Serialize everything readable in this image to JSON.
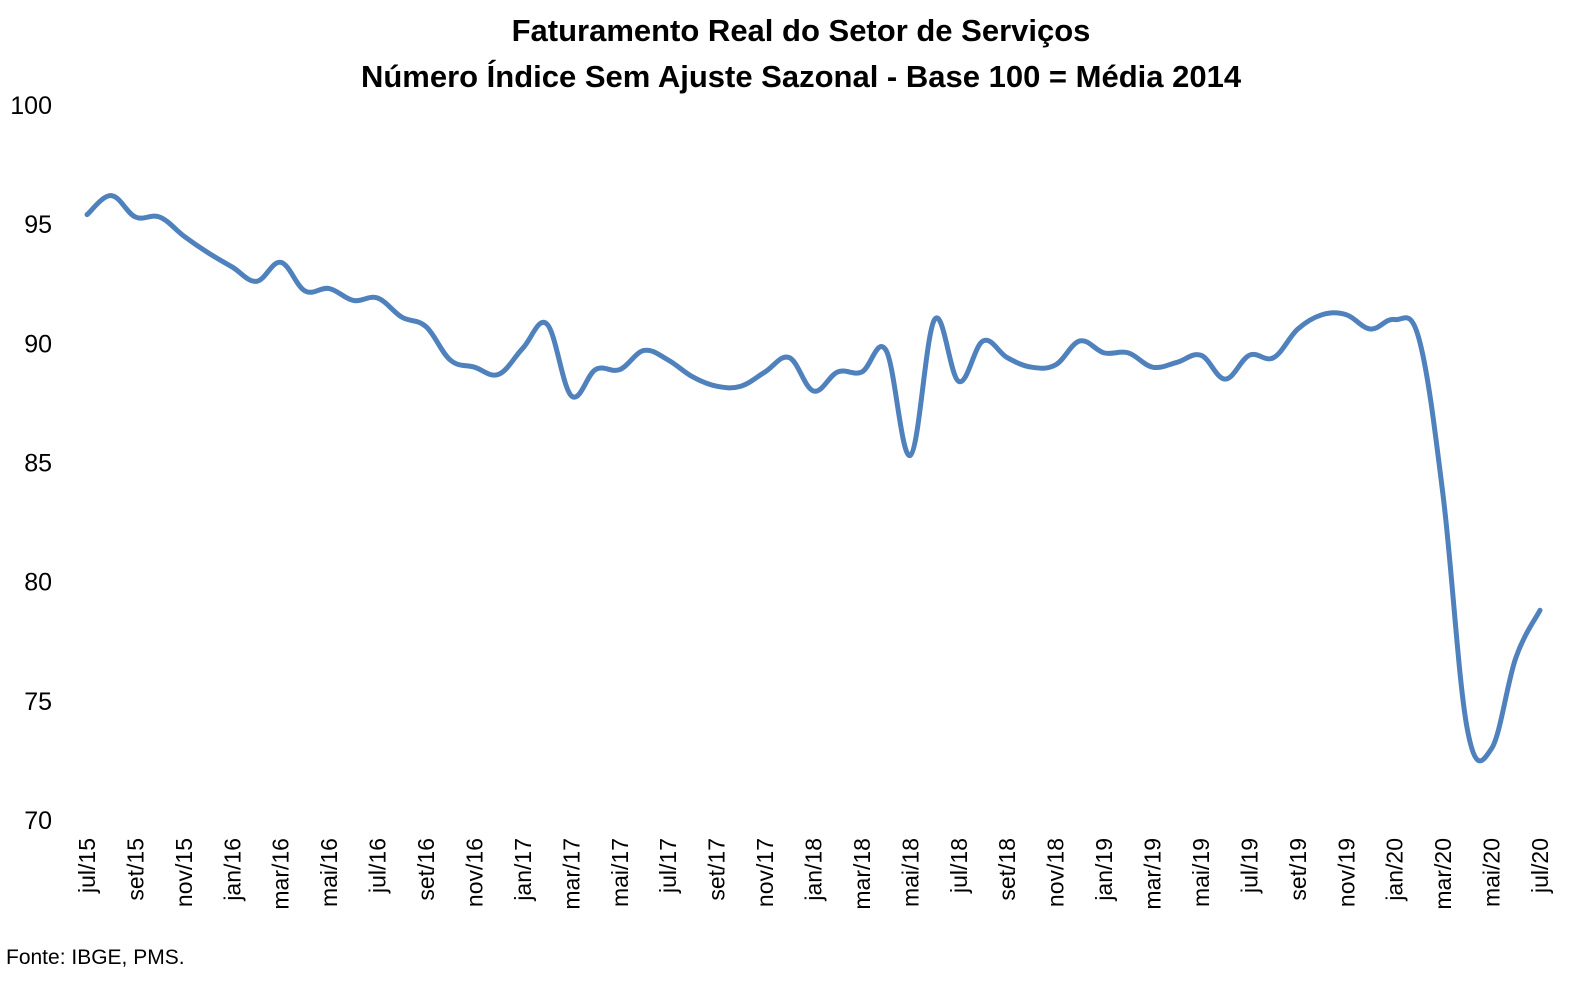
{
  "chart_data": {
    "type": "line",
    "title": "Faturamento Real do Setor de Serviços",
    "subtitle": "Número Índice Sem Ajuste Sazonal - Base 100 = Média 2014",
    "xlabel": "",
    "ylabel": "",
    "ylim": [
      70,
      100
    ],
    "yticks": [
      "70",
      "75",
      "80",
      "85",
      "90",
      "95",
      "100"
    ],
    "grid": false,
    "legend": "none",
    "line_color": "#4F81BD",
    "x": [
      "jul/15",
      "ago/15",
      "set/15",
      "out/15",
      "nov/15",
      "dez/15",
      "jan/16",
      "fev/16",
      "mar/16",
      "abr/16",
      "mai/16",
      "jun/16",
      "jul/16",
      "ago/16",
      "set/16",
      "out/16",
      "nov/16",
      "dez/16",
      "jan/17",
      "fev/17",
      "mar/17",
      "abr/17",
      "mai/17",
      "jun/17",
      "jul/17",
      "ago/17",
      "set/17",
      "out/17",
      "nov/17",
      "dez/17",
      "jan/18",
      "fev/18",
      "mar/18",
      "abr/18",
      "mai/18",
      "jun/18",
      "jul/18",
      "ago/18",
      "set/18",
      "out/18",
      "nov/18",
      "dez/18",
      "jan/19",
      "fev/19",
      "mar/19",
      "abr/19",
      "mai/19",
      "jun/19",
      "jul/19",
      "ago/19",
      "set/19",
      "out/19",
      "nov/19",
      "dez/19",
      "jan/20",
      "fev/20",
      "mar/20",
      "abr/20",
      "mai/20",
      "jun/20",
      "jul/20"
    ],
    "xticks": [
      "jul/15",
      "set/15",
      "nov/15",
      "jan/16",
      "mar/16",
      "mai/16",
      "jul/16",
      "set/16",
      "nov/16",
      "jan/17",
      "mar/17",
      "mai/17",
      "jul/17",
      "set/17",
      "nov/17",
      "jan/18",
      "mar/18",
      "mai/18",
      "jul/18",
      "set/18",
      "nov/18",
      "jan/19",
      "mar/19",
      "mai/19",
      "jul/19",
      "set/19",
      "nov/19",
      "jan/20",
      "mar/20",
      "mai/20",
      "jul/20"
    ],
    "series": [
      {
        "values": [
          95.4,
          96.2,
          95.3,
          95.3,
          94.5,
          93.8,
          93.2,
          92.6,
          93.4,
          92.2,
          92.3,
          91.8,
          91.9,
          91.1,
          90.7,
          89.3,
          89.0,
          88.7,
          89.8,
          90.8,
          87.8,
          88.9,
          88.9,
          89.7,
          89.3,
          88.6,
          88.2,
          88.2,
          88.8,
          89.4,
          88.0,
          88.8,
          88.8,
          89.7,
          85.3,
          91.0,
          88.4,
          90.1,
          89.4,
          89.0,
          89.1,
          90.1,
          89.6,
          89.6,
          89.0,
          89.2,
          89.5,
          88.5,
          89.5,
          89.4,
          90.6,
          91.2,
          91.2,
          90.6,
          91.0,
          90.2,
          83.6,
          73.8,
          73.0,
          76.8,
          78.8
        ]
      }
    ]
  },
  "source_note": "Fonte: IBGE, PMS."
}
